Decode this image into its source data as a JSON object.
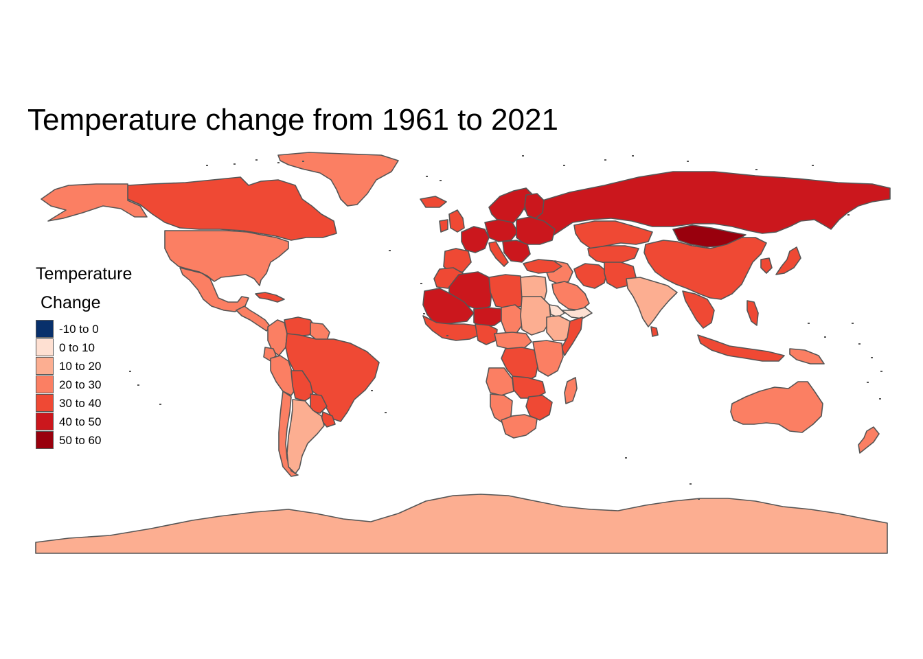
{
  "title": "Temperature change from 1961 to 2021",
  "legend": {
    "title_line1": "Temperature",
    "title_line2": "Change",
    "items": [
      {
        "label": "-10 to 0",
        "color": "#08306B"
      },
      {
        "label": "0 to 10",
        "color": "#FEE0D2"
      },
      {
        "label": "10 to 20",
        "color": "#FCAE91"
      },
      {
        "label": "20 to 30",
        "color": "#FB7F63"
      },
      {
        "label": "30 to 40",
        "color": "#EF4934"
      },
      {
        "label": "40 to 50",
        "color": "#CB171D"
      },
      {
        "label": "50 to 60",
        "color": "#99000D"
      }
    ]
  },
  "border_color": "#555555",
  "chart_data": {
    "type": "choropleth",
    "projection": "equirectangular",
    "classes": [
      "-10 to 0",
      "0 to 10",
      "10 to 20",
      "20 to 30",
      "30 to 40",
      "40 to 50",
      "50 to 60"
    ],
    "regions": [
      {
        "name": "Greenland",
        "class": "20 to 30"
      },
      {
        "name": "Canada",
        "class": "30 to 40"
      },
      {
        "name": "United States",
        "class": "20 to 30"
      },
      {
        "name": "Alaska",
        "class": "20 to 30"
      },
      {
        "name": "Mexico",
        "class": "20 to 30"
      },
      {
        "name": "Central America",
        "class": "20 to 30"
      },
      {
        "name": "Cuba",
        "class": "30 to 40"
      },
      {
        "name": "Colombia",
        "class": "20 to 30"
      },
      {
        "name": "Venezuela",
        "class": "30 to 40"
      },
      {
        "name": "Guyana",
        "class": "20 to 30"
      },
      {
        "name": "Ecuador",
        "class": "20 to 30"
      },
      {
        "name": "Peru",
        "class": "20 to 30"
      },
      {
        "name": "Brazil",
        "class": "30 to 40"
      },
      {
        "name": "Bolivia",
        "class": "30 to 40"
      },
      {
        "name": "Paraguay",
        "class": "30 to 40"
      },
      {
        "name": "Uruguay",
        "class": "30 to 40"
      },
      {
        "name": "Chile",
        "class": "20 to 30"
      },
      {
        "name": "Argentina",
        "class": "10 to 20"
      },
      {
        "name": "Russia",
        "class": "40 to 50"
      },
      {
        "name": "Mongolia",
        "class": "50 to 60"
      },
      {
        "name": "China",
        "class": "30 to 40"
      },
      {
        "name": "Kazakhstan",
        "class": "30 to 40"
      },
      {
        "name": "Central Asia",
        "class": "30 to 40"
      },
      {
        "name": "Iran",
        "class": "30 to 40"
      },
      {
        "name": "Middle East",
        "class": "20 to 30"
      },
      {
        "name": "Saudi Arabia",
        "class": "20 to 30"
      },
      {
        "name": "Yemen",
        "class": "0 to 10"
      },
      {
        "name": "Afghanistan and Pakistan",
        "class": "30 to 40"
      },
      {
        "name": "India",
        "class": "10 to 20"
      },
      {
        "name": "Sri Lanka",
        "class": "30 to 40"
      },
      {
        "name": "Southeast Asia",
        "class": "30 to 40"
      },
      {
        "name": "Japan",
        "class": "30 to 40"
      },
      {
        "name": "Korea",
        "class": "30 to 40"
      },
      {
        "name": "Indonesia",
        "class": "30 to 40"
      },
      {
        "name": "Papua New Guinea",
        "class": "20 to 30"
      },
      {
        "name": "Philippines",
        "class": "30 to 40"
      },
      {
        "name": "Scandinavia",
        "class": "40 to 50"
      },
      {
        "name": "Finland",
        "class": "40 to 50"
      },
      {
        "name": "United Kingdom",
        "class": "30 to 40"
      },
      {
        "name": "Ireland",
        "class": "30 to 40"
      },
      {
        "name": "Iceland",
        "class": "30 to 40"
      },
      {
        "name": "Western Europe",
        "class": "40 to 50"
      },
      {
        "name": "Central Europe",
        "class": "40 to 50"
      },
      {
        "name": "Eastern Europe",
        "class": "40 to 50"
      },
      {
        "name": "Iberia",
        "class": "30 to 40"
      },
      {
        "name": "Italy",
        "class": "30 to 40"
      },
      {
        "name": "Balkans",
        "class": "40 to 50"
      },
      {
        "name": "Turkey",
        "class": "30 to 40"
      },
      {
        "name": "Morocco",
        "class": "30 to 40"
      },
      {
        "name": "Algeria",
        "class": "40 to 50"
      },
      {
        "name": "Mauritania and Mali",
        "class": "40 to 50"
      },
      {
        "name": "Niger",
        "class": "40 to 50"
      },
      {
        "name": "Libya",
        "class": "30 to 40"
      },
      {
        "name": "Egypt",
        "class": "10 to 20"
      },
      {
        "name": "Chad",
        "class": "20 to 30"
      },
      {
        "name": "Sudan",
        "class": "10 to 20"
      },
      {
        "name": "Eritrea",
        "class": "0 to 10"
      },
      {
        "name": "Ethiopia",
        "class": "10 to 20"
      },
      {
        "name": "Somalia",
        "class": "30 to 40"
      },
      {
        "name": "West Africa",
        "class": "30 to 40"
      },
      {
        "name": "Nigeria",
        "class": "30 to 40"
      },
      {
        "name": "Central Africa",
        "class": "20 to 30"
      },
      {
        "name": "DR Congo",
        "class": "30 to 40"
      },
      {
        "name": "East Africa",
        "class": "20 to 30"
      },
      {
        "name": "Angola",
        "class": "20 to 30"
      },
      {
        "name": "Zambia",
        "class": "30 to 40"
      },
      {
        "name": "Southern Africa",
        "class": "30 to 40"
      },
      {
        "name": "Namibia",
        "class": "20 to 30"
      },
      {
        "name": "South Africa",
        "class": "20 to 30"
      },
      {
        "name": "Madagascar",
        "class": "20 to 30"
      },
      {
        "name": "Australia",
        "class": "20 to 30"
      },
      {
        "name": "New Zealand",
        "class": "20 to 30"
      },
      {
        "name": "Antarctica",
        "class": "10 to 20"
      }
    ]
  }
}
